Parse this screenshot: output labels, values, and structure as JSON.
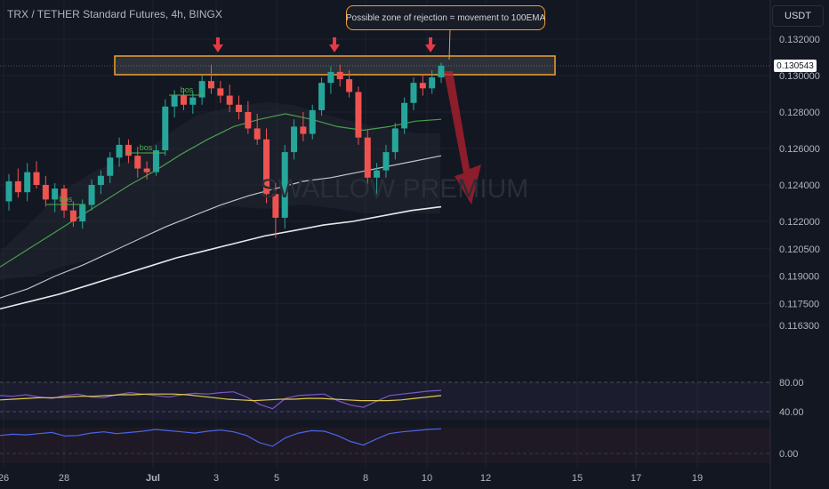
{
  "header": {
    "pair_title": "TRX / TETHER Standard Futures, 4h, BINGX",
    "currency": "USDT",
    "last_price": "0.130543"
  },
  "annotation": {
    "callout_text": "Possible zone of rejection = movement to 100EMA",
    "watermark": "SWALLOW PREMIUM",
    "bos_label": "bos"
  },
  "colors": {
    "background": "#131722",
    "up": "#26a69a",
    "down": "#ef5350",
    "zone": "#f0a030",
    "ema_fast": "#4caf50",
    "ema_mid": "#d1d4dc",
    "ema_slow": "#ffffff",
    "rsi": "#7e57c2",
    "rsi_ma": "#e0c94a",
    "osc": "#4866e8",
    "arrow": "#e53945"
  },
  "chart_data": [
    {
      "type": "candlestick",
      "title": "TRX / TETHER Standard Futures, 4h, BINGX",
      "price_axis": [
        "0.132000",
        "0.130000",
        "0.128000",
        "0.126000",
        "0.124000",
        "0.122000",
        "0.120500",
        "0.119000",
        "0.117500",
        "0.116300"
      ],
      "time_axis": [
        "26",
        "28",
        "Jul",
        "3",
        "5",
        "8",
        "10",
        "12",
        "15",
        "17",
        "19"
      ],
      "ylim": [
        0.1158,
        0.1333
      ],
      "last_price": 0.130543,
      "resistance_zone": [
        0.13012,
        0.13078
      ],
      "candles": [
        {
          "o": 0.1231,
          "h": 0.1246,
          "l": 0.1226,
          "c": 0.1242
        },
        {
          "o": 0.1242,
          "h": 0.1249,
          "l": 0.1233,
          "c": 0.1236
        },
        {
          "o": 0.1236,
          "h": 0.1252,
          "l": 0.1231,
          "c": 0.1247
        },
        {
          "o": 0.1247,
          "h": 0.1253,
          "l": 0.1238,
          "c": 0.124
        },
        {
          "o": 0.124,
          "h": 0.1245,
          "l": 0.1228,
          "c": 0.1232
        },
        {
          "o": 0.1232,
          "h": 0.1241,
          "l": 0.1225,
          "c": 0.1238
        },
        {
          "o": 0.1238,
          "h": 0.124,
          "l": 0.1222,
          "c": 0.1226
        },
        {
          "o": 0.1226,
          "h": 0.1231,
          "l": 0.1217,
          "c": 0.122
        },
        {
          "o": 0.122,
          "h": 0.1232,
          "l": 0.1216,
          "c": 0.1229
        },
        {
          "o": 0.1229,
          "h": 0.1243,
          "l": 0.1226,
          "c": 0.124
        },
        {
          "o": 0.124,
          "h": 0.1248,
          "l": 0.1235,
          "c": 0.1245
        },
        {
          "o": 0.1245,
          "h": 0.1258,
          "l": 0.1241,
          "c": 0.1255
        },
        {
          "o": 0.1255,
          "h": 0.1266,
          "l": 0.125,
          "c": 0.1262
        },
        {
          "o": 0.1262,
          "h": 0.1265,
          "l": 0.1252,
          "c": 0.1256
        },
        {
          "o": 0.1256,
          "h": 0.1261,
          "l": 0.1244,
          "c": 0.1249
        },
        {
          "o": 0.1249,
          "h": 0.1253,
          "l": 0.1243,
          "c": 0.1247
        },
        {
          "o": 0.1247,
          "h": 0.1262,
          "l": 0.1245,
          "c": 0.1259
        },
        {
          "o": 0.1259,
          "h": 0.1287,
          "l": 0.1256,
          "c": 0.1283
        },
        {
          "o": 0.1283,
          "h": 0.1292,
          "l": 0.1277,
          "c": 0.1289
        },
        {
          "o": 0.1289,
          "h": 0.1293,
          "l": 0.1281,
          "c": 0.1284
        },
        {
          "o": 0.1284,
          "h": 0.1291,
          "l": 0.1279,
          "c": 0.1288
        },
        {
          "o": 0.1288,
          "h": 0.13,
          "l": 0.1284,
          "c": 0.1297
        },
        {
          "o": 0.1297,
          "h": 0.1306,
          "l": 0.129,
          "c": 0.1293
        },
        {
          "o": 0.1293,
          "h": 0.1297,
          "l": 0.1285,
          "c": 0.1289
        },
        {
          "o": 0.1289,
          "h": 0.1295,
          "l": 0.128,
          "c": 0.1284
        },
        {
          "o": 0.1284,
          "h": 0.1289,
          "l": 0.1276,
          "c": 0.128
        },
        {
          "o": 0.128,
          "h": 0.1286,
          "l": 0.1268,
          "c": 0.1271
        },
        {
          "o": 0.1271,
          "h": 0.1279,
          "l": 0.1262,
          "c": 0.1265
        },
        {
          "o": 0.1265,
          "h": 0.1271,
          "l": 0.123,
          "c": 0.1235
        },
        {
          "o": 0.1235,
          "h": 0.1241,
          "l": 0.1211,
          "c": 0.1222
        },
        {
          "o": 0.1222,
          "h": 0.1262,
          "l": 0.1216,
          "c": 0.1258
        },
        {
          "o": 0.1258,
          "h": 0.1276,
          "l": 0.1254,
          "c": 0.1272
        },
        {
          "o": 0.1272,
          "h": 0.128,
          "l": 0.1264,
          "c": 0.1268
        },
        {
          "o": 0.1268,
          "h": 0.1284,
          "l": 0.1265,
          "c": 0.1281
        },
        {
          "o": 0.1281,
          "h": 0.1299,
          "l": 0.1278,
          "c": 0.1296
        },
        {
          "o": 0.1296,
          "h": 0.1305,
          "l": 0.129,
          "c": 0.1302
        },
        {
          "o": 0.1302,
          "h": 0.1306,
          "l": 0.1294,
          "c": 0.1298
        },
        {
          "o": 0.1298,
          "h": 0.1303,
          "l": 0.1288,
          "c": 0.1291
        },
        {
          "o": 0.1291,
          "h": 0.1294,
          "l": 0.1262,
          "c": 0.1266
        },
        {
          "o": 0.1266,
          "h": 0.127,
          "l": 0.1236,
          "c": 0.1244
        },
        {
          "o": 0.1244,
          "h": 0.1252,
          "l": 0.1233,
          "c": 0.1248
        },
        {
          "o": 0.1248,
          "h": 0.1262,
          "l": 0.1244,
          "c": 0.1258
        },
        {
          "o": 0.1258,
          "h": 0.1274,
          "l": 0.1254,
          "c": 0.1271
        },
        {
          "o": 0.1271,
          "h": 0.1288,
          "l": 0.1268,
          "c": 0.1285
        },
        {
          "o": 0.1285,
          "h": 0.1299,
          "l": 0.1281,
          "c": 0.1296
        },
        {
          "o": 0.1296,
          "h": 0.1301,
          "l": 0.1289,
          "c": 0.1293
        },
        {
          "o": 0.1293,
          "h": 0.1303,
          "l": 0.129,
          "c": 0.1299
        },
        {
          "o": 0.1299,
          "h": 0.1307,
          "l": 0.1296,
          "c": 0.130543
        }
      ],
      "series": [
        {
          "name": "",
          "values": [
            0.1195,
            0.1204,
            0.1213,
            0.1222,
            0.1231,
            0.124,
            0.1248,
            0.1257,
            0.1265,
            0.1272,
            0.1276,
            0.1279,
            0.1276,
            0.1272,
            0.127,
            0.1272,
            0.1275,
            0.1276
          ]
        },
        {
          "name": "",
          "values": [
            0.1178,
            0.1183,
            0.119,
            0.1196,
            0.1203,
            0.121,
            0.1217,
            0.1223,
            0.1229,
            0.1234,
            0.1238,
            0.1242,
            0.1244,
            0.1247,
            0.125,
            0.1253,
            0.1256
          ]
        },
        {
          "name": "",
          "values": [
            0.1172,
            0.1176,
            0.118,
            0.1185,
            0.119,
            0.1195,
            0.12,
            0.1204,
            0.1208,
            0.1212,
            0.1215,
            0.1218,
            0.122,
            0.1223,
            0.1226,
            0.1228
          ]
        }
      ]
    },
    {
      "type": "line",
      "ylim": [
        20,
        90
      ],
      "y_ticks": [
        "80.00",
        "40.00"
      ],
      "series": [
        {
          "name": "",
          "values": [
            62,
            61,
            63,
            60,
            58,
            62,
            64,
            60,
            59,
            63,
            66,
            64,
            62,
            60,
            63,
            65,
            64,
            66,
            67,
            60,
            50,
            44,
            58,
            62,
            63,
            64,
            55,
            49,
            46,
            54,
            62,
            64,
            66,
            68,
            69
          ]
        },
        {
          "name": "",
          "values": [
            56,
            57,
            58,
            59,
            59,
            60,
            61,
            61,
            62,
            63,
            63,
            64,
            64,
            64,
            63,
            61,
            59,
            57,
            56,
            55,
            56,
            57,
            57,
            58,
            58,
            57,
            56,
            55,
            55,
            55,
            56,
            58,
            60,
            62
          ]
        }
      ]
    },
    {
      "type": "line",
      "ylim": [
        -25,
        80
      ],
      "y_ticks": [
        "0.00"
      ],
      "series": [
        {
          "name": "",
          "values": [
            30,
            32,
            31,
            33,
            35,
            29,
            30,
            34,
            36,
            33,
            35,
            37,
            40,
            38,
            36,
            34,
            37,
            39,
            36,
            30,
            18,
            12,
            26,
            34,
            38,
            37,
            30,
            20,
            14,
            24,
            33,
            36,
            38,
            40,
            41
          ]
        }
      ]
    }
  ]
}
